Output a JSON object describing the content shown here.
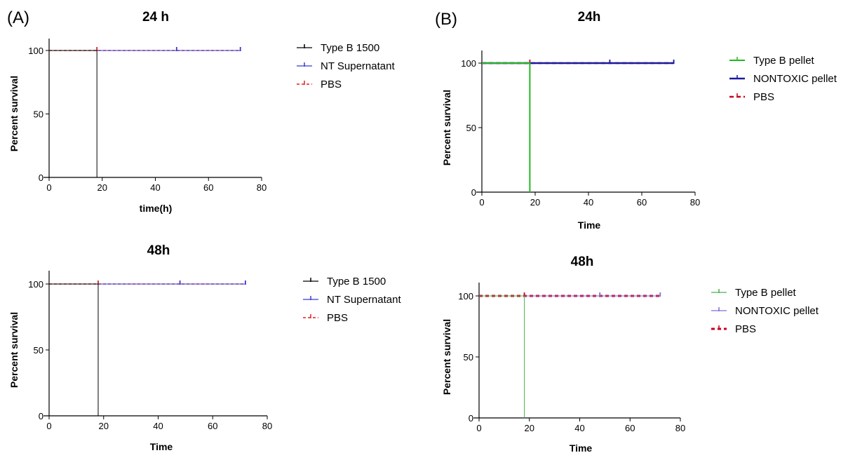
{
  "panels": {
    "a_label": "(A)",
    "b_label": "(B)"
  },
  "colors": {
    "black": "#000000",
    "blue_a": "#3a3ad6",
    "red": "#e02020",
    "green": "#22b822",
    "navy": "#1a1aa0",
    "dark_red": "#c8001e",
    "green_light": "#4caf50",
    "purple_light": "#7b6fd8"
  },
  "chart_data": [
    {
      "id": "A1",
      "type": "line",
      "style": "survival-step",
      "title": "24 h",
      "xlabel": "time(h)",
      "ylabel": "Percent survival",
      "xlim": [
        0,
        80
      ],
      "ylim": [
        0,
        100
      ],
      "xticks": [
        0,
        20,
        40,
        60,
        80
      ],
      "yticks": [
        0,
        50,
        100
      ],
      "legend_position": "right",
      "series": [
        {
          "name": "Type B 1500",
          "x": [
            0,
            18,
            18
          ],
          "y": [
            100,
            100,
            0
          ],
          "color_key": "black",
          "width": 1,
          "dash": ""
        },
        {
          "name": "NT Supernatant",
          "x": [
            0,
            72
          ],
          "y": [
            100,
            100
          ],
          "censor_x": [
            48,
            72
          ],
          "color_key": "blue_a",
          "width": 1,
          "dash": ""
        },
        {
          "name": "PBS",
          "x": [
            0,
            72
          ],
          "y": [
            100,
            100
          ],
          "censor_x": [
            18
          ],
          "color_key": "red",
          "width": 1.5,
          "dash": "4,3"
        }
      ]
    },
    {
      "id": "A2",
      "type": "line",
      "style": "survival-step",
      "title": "48h",
      "xlabel": "Time",
      "ylabel": "Percent survival",
      "xlim": [
        0,
        80
      ],
      "ylim": [
        0,
        100
      ],
      "xticks": [
        0,
        20,
        40,
        60,
        80
      ],
      "yticks": [
        0,
        50,
        100
      ],
      "legend_position": "right",
      "series": [
        {
          "name": "Type B  1500",
          "x": [
            0,
            18,
            18
          ],
          "y": [
            100,
            100,
            0
          ],
          "color_key": "black",
          "width": 1,
          "dash": ""
        },
        {
          "name": "NT Supernatant",
          "x": [
            0,
            72
          ],
          "y": [
            100,
            100
          ],
          "censor_x": [
            48,
            72
          ],
          "color_key": "blue_a",
          "width": 1,
          "dash": ""
        },
        {
          "name": "PBS",
          "x": [
            0,
            72
          ],
          "y": [
            100,
            100
          ],
          "censor_x": [
            18
          ],
          "color_key": "red",
          "width": 1.5,
          "dash": "4,3"
        }
      ]
    },
    {
      "id": "B1",
      "type": "line",
      "style": "survival-step",
      "title": "24h",
      "xlabel": "Time",
      "ylabel": "Percent survival",
      "xlim": [
        0,
        80
      ],
      "ylim": [
        0,
        100
      ],
      "xticks": [
        0,
        20,
        40,
        60,
        80
      ],
      "yticks": [
        0,
        50,
        100
      ],
      "legend_position": "right",
      "series": [
        {
          "name": "Type B pellet",
          "x": [
            0,
            18,
            18
          ],
          "y": [
            100,
            100,
            0
          ],
          "color_key": "green",
          "width": 2,
          "dash": ""
        },
        {
          "name": "NONTOXIC pellet",
          "x": [
            0,
            72
          ],
          "y": [
            100,
            100
          ],
          "censor_x": [
            48,
            72
          ],
          "color_key": "navy",
          "width": 2.5,
          "dash": ""
        },
        {
          "name": "PBS",
          "x": [
            0,
            72
          ],
          "y": [
            100,
            100
          ],
          "censor_x": [
            18
          ],
          "color_key": "dark_red",
          "width": 2.5,
          "dash": "6,4"
        }
      ]
    },
    {
      "id": "B2",
      "type": "line",
      "style": "survival-step",
      "title": "48h",
      "xlabel": "Time",
      "ylabel": "Percent survival",
      "xlim": [
        0,
        80
      ],
      "ylim": [
        0,
        100
      ],
      "xticks": [
        0,
        20,
        40,
        60,
        80
      ],
      "yticks": [
        0,
        50,
        100
      ],
      "legend_position": "right",
      "series": [
        {
          "name": "Type B pellet",
          "x": [
            0,
            18,
            18
          ],
          "y": [
            100,
            100,
            0
          ],
          "color_key": "green_light",
          "width": 1,
          "dash": ""
        },
        {
          "name": "NONTOXIC pellet",
          "x": [
            0,
            72
          ],
          "y": [
            100,
            100
          ],
          "censor_x": [
            48,
            72
          ],
          "color_key": "purple_light",
          "width": 1,
          "dash": ""
        },
        {
          "name": "PBS",
          "x": [
            0,
            72
          ],
          "y": [
            100,
            100
          ],
          "censor_x": [
            18
          ],
          "color_key": "dark_red",
          "width": 3,
          "dash": "5,4"
        }
      ]
    }
  ]
}
